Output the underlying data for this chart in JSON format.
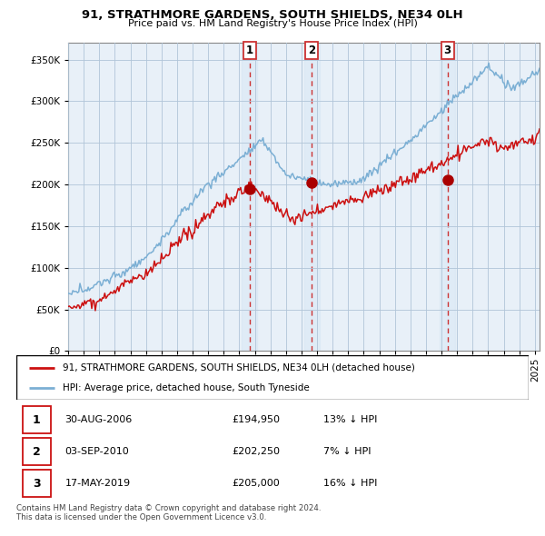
{
  "title": "91, STRATHMORE GARDENS, SOUTH SHIELDS, NE34 0LH",
  "subtitle": "Price paid vs. HM Land Registry's House Price Index (HPI)",
  "legend_line1": "91, STRATHMORE GARDENS, SOUTH SHIELDS, NE34 0LH (detached house)",
  "legend_line2": "HPI: Average price, detached house, South Tyneside",
  "sale_date1": "30-AUG-2006",
  "sale_price1": "£194,950",
  "sale_hpi1": "13% ↓ HPI",
  "sale_date2": "03-SEP-2010",
  "sale_price2": "£202,250",
  "sale_hpi2": "7% ↓ HPI",
  "sale_date3": "17-MAY-2019",
  "sale_price3": "£205,000",
  "sale_hpi3": "16% ↓ HPI",
  "footer": "Contains HM Land Registry data © Crown copyright and database right 2024.\nThis data is licensed under the Open Government Licence v3.0.",
  "ylim": [
    0,
    370000
  ],
  "yticks": [
    0,
    50000,
    100000,
    150000,
    200000,
    250000,
    300000,
    350000
  ],
  "hpi_color": "#7bafd4",
  "price_color": "#cc1111",
  "vline_color": "#cc3333",
  "marker_color": "#aa0000",
  "plot_bg_color": "#e8f0f8",
  "grid_color": "#b0c4d8",
  "shade_color": "#d0e4f4",
  "sale1_x": 2006.66,
  "sale1_y": 194950,
  "sale2_x": 2010.67,
  "sale2_y": 202250,
  "sale3_x": 2019.38,
  "sale3_y": 205000,
  "xlim_left": 1995.3,
  "xlim_right": 2025.3
}
